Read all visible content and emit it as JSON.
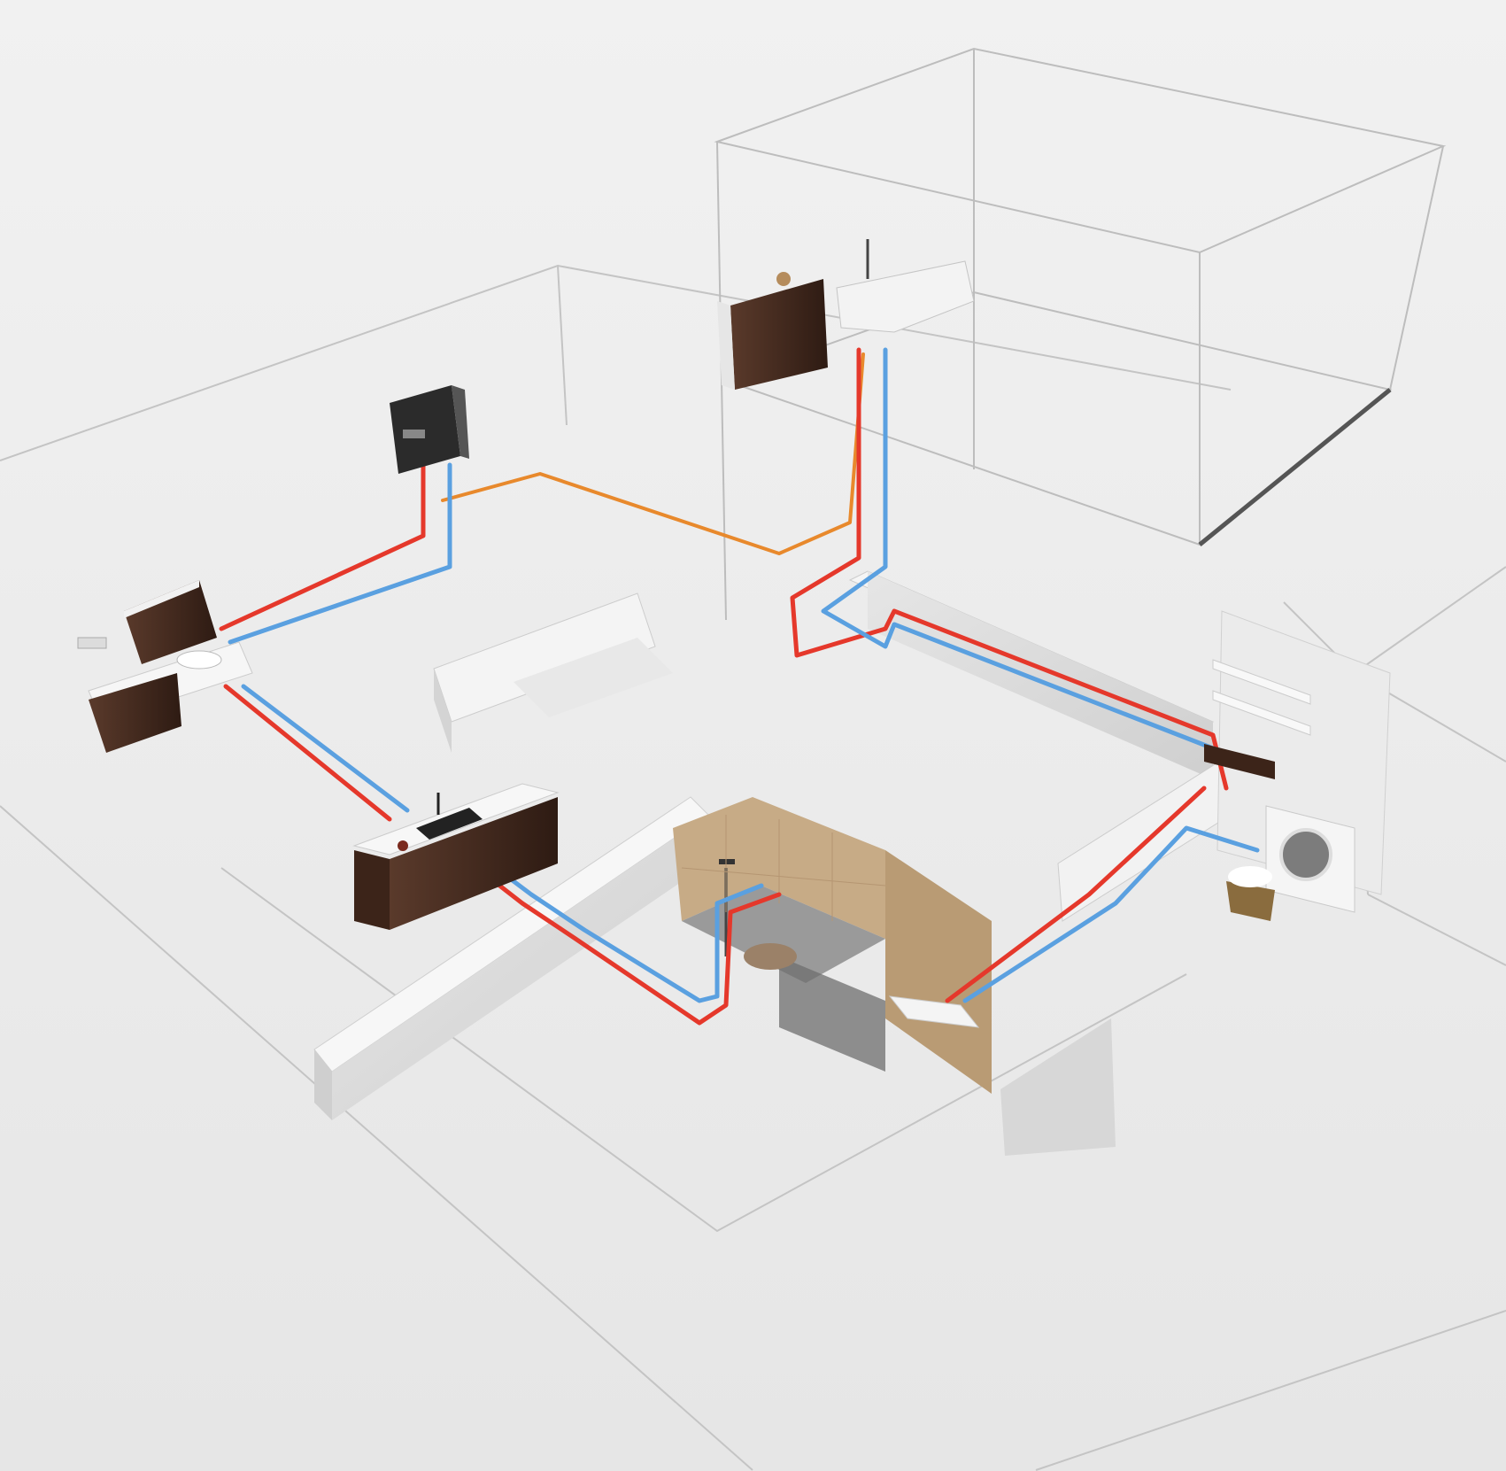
{
  "colors": {
    "background": "#ececec",
    "floor_light": "#f4f4f4",
    "wall_top": "#f2f2f2",
    "wall_side": "#d9d9d9",
    "outline": "#b9b9b9",
    "hot_pipe": "#e5382b",
    "cold_pipe": "#5aa0e0",
    "gas_pipe": "#e8892c",
    "wood": "#4a2e22",
    "wood_dark": "#321d15",
    "tile": "#c8b190",
    "tile_floor": "#8e8e8e",
    "glass": "#6f6f6f"
  },
  "legend": {
    "hot": "hot-water",
    "cold": "cold-water",
    "gas": "gas-supply"
  },
  "icons": {
    "boiler": "wall-boiler-icon",
    "washer": "washing-machine-icon",
    "shower": "shower-icon",
    "bathtub": "bathtub-icon",
    "basket": "laundry-basket-icon"
  }
}
